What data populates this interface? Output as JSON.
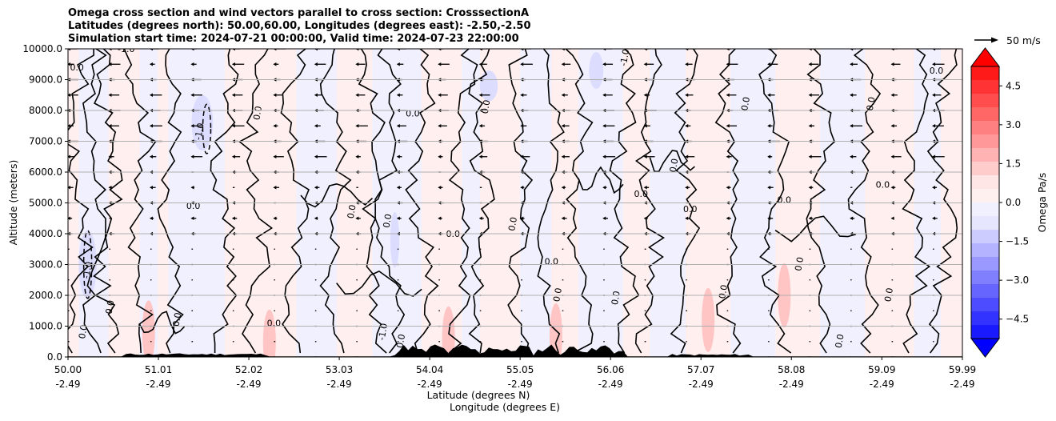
{
  "chart_data": {
    "type": "heatmap",
    "title_lines": [
      "Omega cross section and wind vectors parallel to cross section: CrosssectionA",
      "Latitudes (degrees north): 50.00,60.00, Longitudes (degrees east): -2.50,-2.50",
      "Simulation start time: 2024-07-21 00:00:00, Valid time: 2024-07-23 22:00:00"
    ],
    "ylabel": "Altitude (meters)",
    "xlabel_lat": "Latitude (degrees N)",
    "xlabel_lon": "Longitude (degrees E)",
    "ylim": [
      0,
      10000
    ],
    "yticks": [
      {
        "value": 0,
        "label": "0.0"
      },
      {
        "value": 1000,
        "label": "1000.0"
      },
      {
        "value": 2000,
        "label": "2000.0"
      },
      {
        "value": 3000,
        "label": "3000.0"
      },
      {
        "value": 4000,
        "label": "4000.0"
      },
      {
        "value": 5000,
        "label": "5000.0"
      },
      {
        "value": 6000,
        "label": "6000.0"
      },
      {
        "value": 7000,
        "label": "7000.0"
      },
      {
        "value": 8000,
        "label": "8000.0"
      },
      {
        "value": 9000,
        "label": "9000.0"
      },
      {
        "value": 10000,
        "label": "10000.0"
      }
    ],
    "xlim": [
      50.0,
      59.99
    ],
    "xticks": [
      {
        "lat": 50.0,
        "lat_label": "50.00",
        "lon_label": "-2.49"
      },
      {
        "lat": 51.01,
        "lat_label": "51.01",
        "lon_label": "-2.49"
      },
      {
        "lat": 52.02,
        "lat_label": "52.02",
        "lon_label": "-2.49"
      },
      {
        "lat": 53.03,
        "lat_label": "53.03",
        "lon_label": "-2.49"
      },
      {
        "lat": 54.04,
        "lat_label": "54.04",
        "lon_label": "-2.49"
      },
      {
        "lat": 55.05,
        "lat_label": "55.05",
        "lon_label": "-2.49"
      },
      {
        "lat": 56.06,
        "lat_label": "56.06",
        "lon_label": "-2.49"
      },
      {
        "lat": 57.07,
        "lat_label": "57.07",
        "lon_label": "-2.49"
      },
      {
        "lat": 58.08,
        "lat_label": "58.08",
        "lon_label": "-2.49"
      },
      {
        "lat": 59.09,
        "lat_label": "59.09",
        "lon_label": "-2.49"
      },
      {
        "lat": 59.99,
        "lat_label": "59.99",
        "lon_label": "-2.49"
      }
    ],
    "grid": "horizontal",
    "colorbar": {
      "label": "Omega Pa/s",
      "range": [
        -5.25,
        5.25
      ],
      "extend": "both",
      "ticks": [
        {
          "value": 4.5,
          "label": "4.5"
        },
        {
          "value": 3.0,
          "label": "3.0"
        },
        {
          "value": 1.5,
          "label": "1.5"
        },
        {
          "value": 0.0,
          "label": "0.0"
        },
        {
          "value": -1.5,
          "label": "−1.5"
        },
        {
          "value": -3.0,
          "label": "−3.0"
        },
        {
          "value": -4.5,
          "label": "−4.5"
        }
      ],
      "colors_top_to_bottom": [
        "#ff1a1a",
        "#ff3333",
        "#ff4d4d",
        "#ff6666",
        "#ff8080",
        "#ff9999",
        "#ffb3b3",
        "#ffcccc",
        "#ffe6e6",
        "#fff0f0",
        "#f0f0ff",
        "#e6e6ff",
        "#ccccff",
        "#b3b3ff",
        "#9999ff",
        "#8080ff",
        "#6666ff",
        "#4d4dff",
        "#3333ff",
        "#1a1aff"
      ],
      "overflow_max_color": "#ff0000",
      "overflow_min_color": "#0000ff"
    },
    "quiver_key": {
      "label": "50 m/s"
    },
    "contour_labels": [
      {
        "text": "0.0",
        "lat": 50.1,
        "alt": 9300
      },
      {
        "text": "-1.0",
        "lat": 50.25,
        "alt": 2800
      },
      {
        "text": "0.0",
        "lat": 50.2,
        "alt": 800
      },
      {
        "text": "-1.0",
        "lat": 50.65,
        "alt": 9900
      },
      {
        "text": "0.0",
        "lat": 50.5,
        "alt": 1600
      },
      {
        "text": "-1.0",
        "lat": 51.5,
        "alt": 7300
      },
      {
        "text": "0.0",
        "lat": 51.4,
        "alt": 4800
      },
      {
        "text": "0.0",
        "lat": 51.25,
        "alt": 1200
      },
      {
        "text": "0.0",
        "lat": 52.15,
        "alt": 7900
      },
      {
        "text": "0.0",
        "lat": 52.3,
        "alt": 1000
      },
      {
        "text": "0.0",
        "lat": 53.2,
        "alt": 4700
      },
      {
        "text": "0.0",
        "lat": 53.6,
        "alt": 4400
      },
      {
        "text": "0.0",
        "lat": 53.85,
        "alt": 7800
      },
      {
        "text": "-1.0",
        "lat": 53.55,
        "alt": 800
      },
      {
        "text": "0.0",
        "lat": 53.75,
        "alt": 500
      },
      {
        "text": "0.0",
        "lat": 54.3,
        "alt": 3900
      },
      {
        "text": "0.0",
        "lat": 54.7,
        "alt": 8100
      },
      {
        "text": "0.0",
        "lat": 55.0,
        "alt": 4300
      },
      {
        "text": "0.0",
        "lat": 55.4,
        "alt": 3000
      },
      {
        "text": "0.0",
        "lat": 55.5,
        "alt": 2000
      },
      {
        "text": "-1.0",
        "lat": 56.25,
        "alt": 9700
      },
      {
        "text": "0.0",
        "lat": 56.4,
        "alt": 5200
      },
      {
        "text": "0.0",
        "lat": 56.15,
        "alt": 1900
      },
      {
        "text": "0.0",
        "lat": 56.8,
        "alt": 6200
      },
      {
        "text": "0.0",
        "lat": 56.95,
        "alt": 4700
      },
      {
        "text": "0.0",
        "lat": 57.6,
        "alt": 8200
      },
      {
        "text": "0.0",
        "lat": 57.35,
        "alt": 2100
      },
      {
        "text": "0.0",
        "lat": 58.0,
        "alt": 5000
      },
      {
        "text": "0.0",
        "lat": 58.2,
        "alt": 3000
      },
      {
        "text": "0.0",
        "lat": 59.0,
        "alt": 8200
      },
      {
        "text": "0.0",
        "lat": 59.1,
        "alt": 5500
      },
      {
        "text": "0.0",
        "lat": 59.2,
        "alt": 2000
      },
      {
        "text": "0.0",
        "lat": 58.65,
        "alt": 500
      },
      {
        "text": "0.0",
        "lat": 59.7,
        "alt": 9200
      }
    ]
  }
}
